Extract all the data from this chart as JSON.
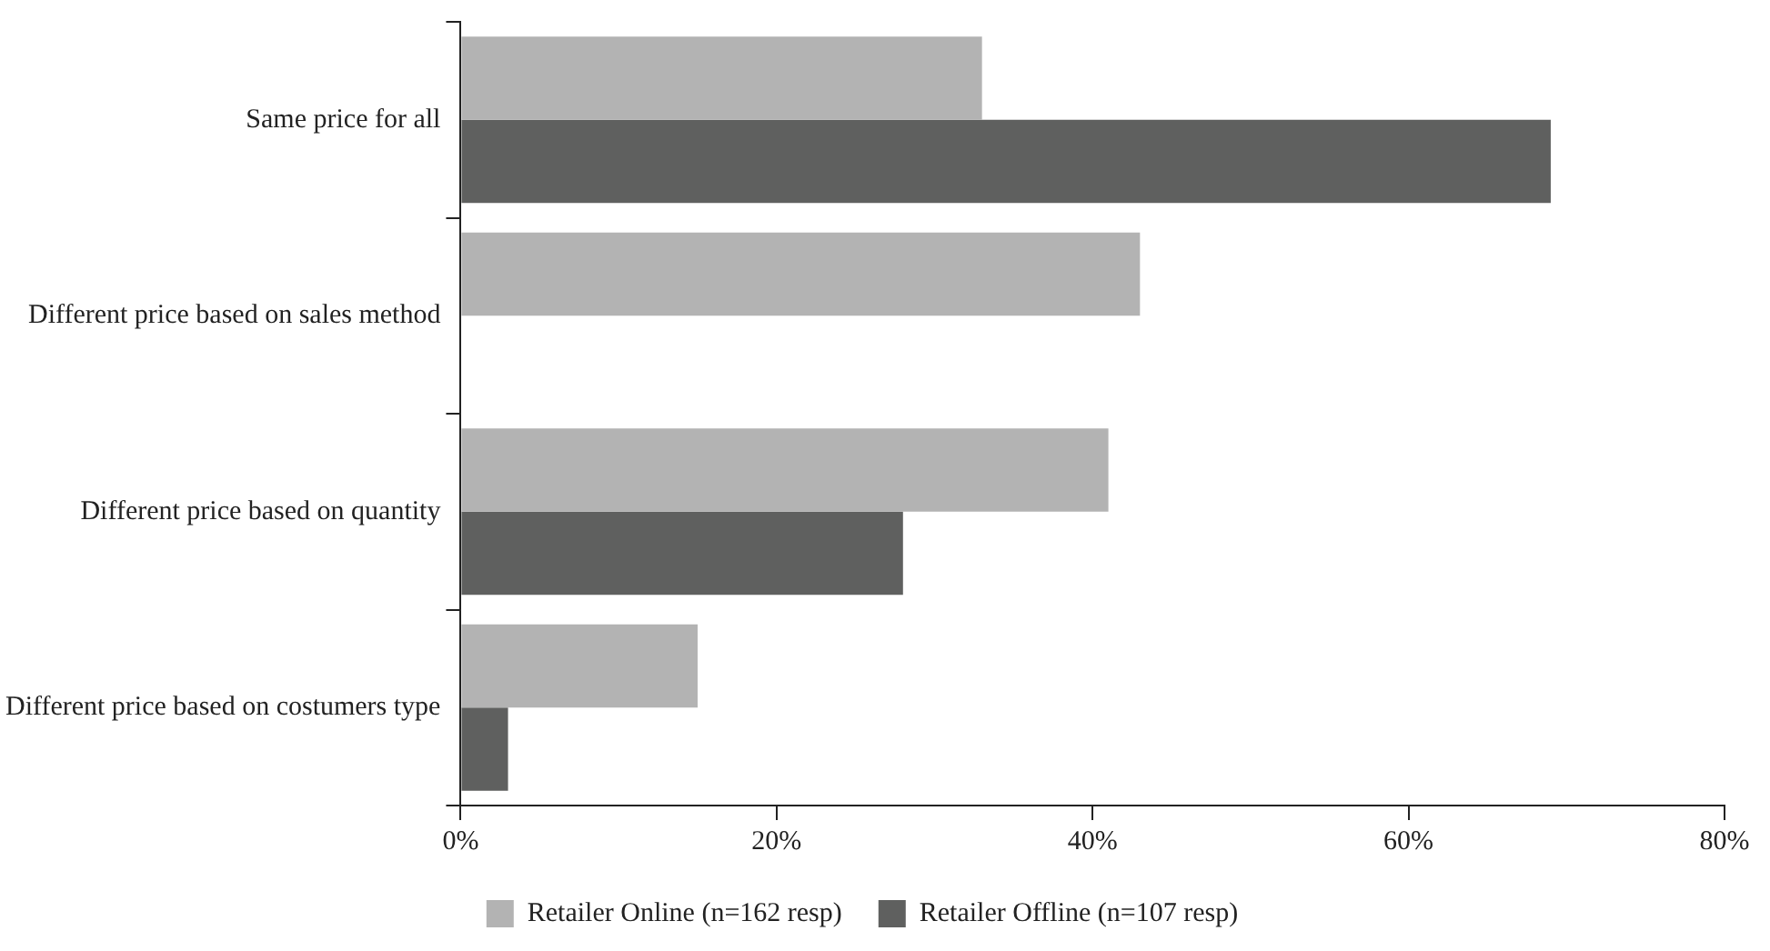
{
  "chart_data": {
    "type": "bar",
    "orientation": "horizontal",
    "categories": [
      "Same price for all",
      "Different price based on sales method",
      "Different price based on quantity",
      "Different price based on costumers type"
    ],
    "series": [
      {
        "name": "Retailer Online (n=162 resp)",
        "color": "#b3b3b3",
        "values": [
          33,
          43,
          41,
          15
        ]
      },
      {
        "name": "Retailer Offline (n=107 resp)",
        "color": "#5f605f",
        "values": [
          69,
          null,
          28,
          3
        ]
      }
    ],
    "xlim": [
      0,
      80
    ],
    "xticks": [
      {
        "value": 0,
        "label": "0%"
      },
      {
        "value": 20,
        "label": "20%"
      },
      {
        "value": 40,
        "label": "40%"
      },
      {
        "value": 60,
        "label": "60%"
      },
      {
        "value": 80,
        "label": "80%"
      }
    ],
    "grid": false,
    "legend": "bottom"
  }
}
